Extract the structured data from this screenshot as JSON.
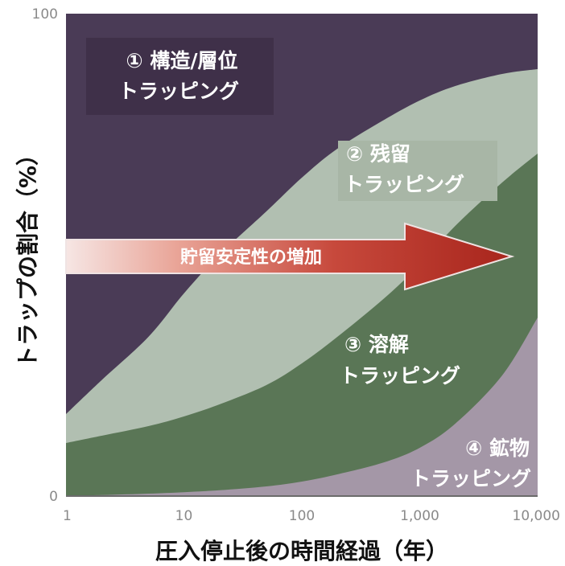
{
  "chart_data": {
    "type": "area",
    "x_scale": "log",
    "xlim": [
      1,
      10000
    ],
    "ylim": [
      0,
      100
    ],
    "xlabel": "圧入停止後の時間経過（年）",
    "ylabel": "トラップの割合（%）",
    "x_ticks": [
      {
        "value": 1,
        "label": "1"
      },
      {
        "value": 10,
        "label": "10"
      },
      {
        "value": 100,
        "label": "100"
      },
      {
        "value": 1000,
        "label": "1,000"
      },
      {
        "value": 10000,
        "label": "10,000"
      }
    ],
    "y_ticks": [
      {
        "value": 0,
        "label": "0"
      },
      {
        "value": 100,
        "label": "100"
      }
    ],
    "boundaries": {
      "x": [
        1,
        2,
        5,
        10,
        20,
        50,
        100,
        200,
        500,
        1000,
        2000,
        5000,
        10000
      ],
      "structural_upper": [
        100,
        100,
        100,
        100,
        100,
        100,
        100,
        100,
        100,
        100,
        100,
        100,
        100
      ],
      "residual_upper": [
        17,
        24,
        33,
        42,
        50,
        59,
        66,
        72,
        78,
        82,
        85,
        87.5,
        88.5
      ],
      "dissolution_upper": [
        11,
        12.5,
        14.5,
        16.5,
        19,
        23,
        27.5,
        33,
        41,
        48,
        56,
        65,
        71
      ],
      "mineral_upper": [
        0,
        0.2,
        0.5,
        0.8,
        1.2,
        2,
        3,
        4.5,
        7,
        10,
        15,
        25,
        37
      ]
    },
    "series": [
      {
        "name": "① 構造/層位",
        "name_line2": "トラッピング",
        "color": "#4a3b56"
      },
      {
        "name": "② 残留",
        "name_line2": "トラッピング",
        "color": "#b1bfb1"
      },
      {
        "name": "③ 溶解",
        "name_line2": "トラッピング",
        "color": "#5a7656"
      },
      {
        "name": "④ 鉱物",
        "name_line2": "トラッピング",
        "color": "#a497a7"
      }
    ],
    "annotation": {
      "text": "貯留安定性の増加"
    }
  }
}
